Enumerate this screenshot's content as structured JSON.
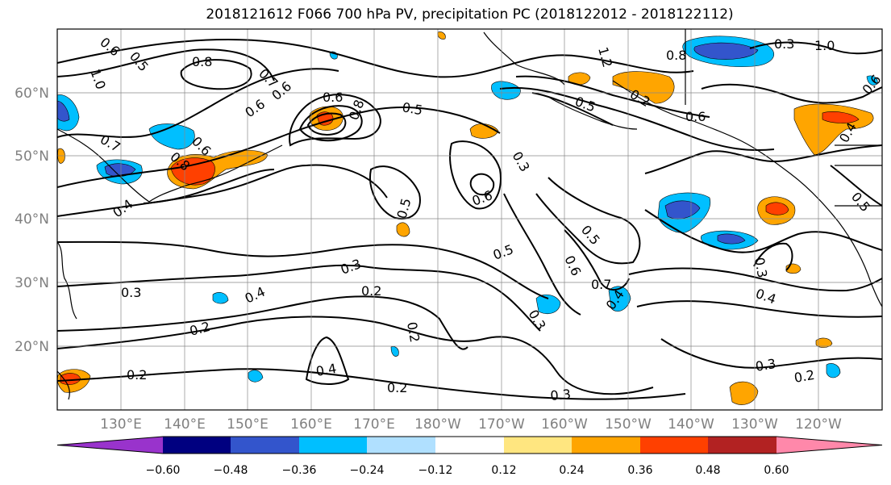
{
  "title": "2018121612 F066 700 hPa PV, precipitation PC (2018122012 - 2018122112)",
  "latitude_labels": [
    "60°N",
    "50°N",
    "40°N",
    "30°N",
    "20°N"
  ],
  "longitude_labels": [
    "130°E",
    "140°E",
    "150°E",
    "160°E",
    "170°E",
    "180°W",
    "170°W",
    "160°W",
    "150°W",
    "140°W",
    "130°W",
    "120°W"
  ],
  "contour_labels": [
    "0.6",
    "0.5",
    "0.8",
    "0.7",
    "1.0",
    "0.8",
    "0.6",
    "0.7",
    "0.6",
    "0.4",
    "0.6",
    "0.8",
    "0.5",
    "0.6",
    "0.3",
    "1.2",
    "0.8",
    "1.0",
    "0.5",
    "0.6",
    "0.4",
    "0.5",
    "0.5",
    "0.3",
    "0.6",
    "0.6",
    "0.5",
    "0.4",
    "0.5",
    "0.6",
    "0.7",
    "0.3",
    "0.2",
    "0.4",
    "0.3",
    "0.3",
    "0.4",
    "0.2",
    "0.2",
    "0.2",
    "0.3",
    "0.4",
    "0.2",
    "0.2",
    "0.3",
    "0.3",
    "0.2"
  ],
  "colorbar": {
    "ticks": [
      "−0.60",
      "−0.48",
      "−0.36",
      "−0.24",
      "−0.12",
      "0.12",
      "0.24",
      "0.36",
      "0.48",
      "0.60"
    ],
    "colors": [
      "#9933cc",
      "#000080",
      "#3355cc",
      "#00bfff",
      "#b0e0ff",
      "#ffffff",
      "#ffe680",
      "#ffa500",
      "#ff4000",
      "#b22222",
      "#ff88aa"
    ]
  },
  "colors": {
    "positive_strong": "#ff4000",
    "positive": "#ffa500",
    "positive_weak": "#ffe680",
    "negative_weak": "#b0e0ff",
    "negative": "#00bfff",
    "negative_strong": "#3355cc"
  }
}
